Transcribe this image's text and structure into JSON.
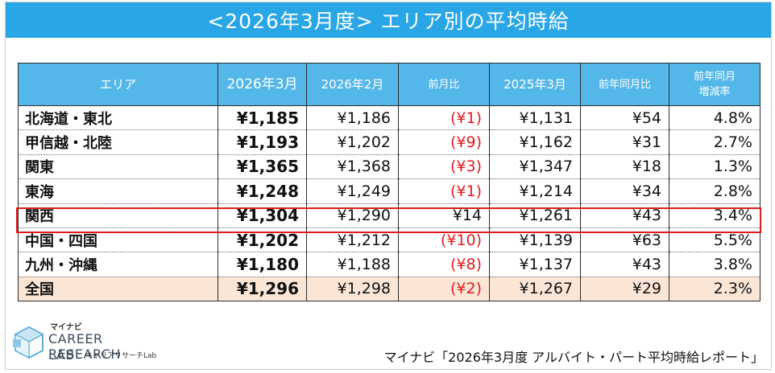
{
  "title": "<2026年3月度>  エリア別の平均時給",
  "table": {
    "headers": [
      "エリア",
      "2026年3月",
      "2026年2月",
      "前月比",
      "2025年3月",
      "前年同月比",
      "前年同月\n増減率"
    ],
    "rows": [
      {
        "region": "北海道・東北",
        "mar2026": "¥1,185",
        "feb2026": "¥1,186",
        "mom": "(¥1)",
        "mar2025": "¥1,131",
        "yoy": "¥54",
        "yoy_rate": "4.8%"
      },
      {
        "region": "甲信越・北陸",
        "mar2026": "¥1,193",
        "feb2026": "¥1,202",
        "mom": "(¥9)",
        "mar2025": "¥1,162",
        "yoy": "¥31",
        "yoy_rate": "2.7%"
      },
      {
        "region": "関東",
        "mar2026": "¥1,365",
        "feb2026": "¥1,368",
        "mom": "(¥3)",
        "mar2025": "¥1,347",
        "yoy": "¥18",
        "yoy_rate": "1.3%"
      },
      {
        "region": "東海",
        "mar2026": "¥1,248",
        "feb2026": "¥1,249",
        "mom": "(¥1)",
        "mar2025": "¥1,214",
        "yoy": "¥34",
        "yoy_rate": "2.8%"
      },
      {
        "region": "関西",
        "mar2026": "¥1,304",
        "feb2026": "¥1,290",
        "mom": "¥14",
        "mar2025": "¥1,261",
        "yoy": "¥43",
        "yoy_rate": "3.4%"
      },
      {
        "region": "中国・四国",
        "mar2026": "¥1,202",
        "feb2026": "¥1,212",
        "mom": "(¥10)",
        "mar2025": "¥1,139",
        "yoy": "¥63",
        "yoy_rate": "5.5%"
      },
      {
        "region": "九州・沖縄",
        "mar2026": "¥1,180",
        "feb2026": "¥1,188",
        "mom": "(¥8)",
        "mar2025": "¥1,137",
        "yoy": "¥43",
        "yoy_rate": "3.8%"
      },
      {
        "region": "全国",
        "mar2026": "¥1,296",
        "feb2026": "¥1,298",
        "mom": "(¥2)",
        "mar2025": "¥1,267",
        "yoy": "¥29",
        "yoy_rate": "2.3%"
      }
    ]
  },
  "logo": {
    "brand_small": "マイナビ",
    "line1": "CAREER RESEARCH",
    "line2": "LAB",
    "sub": "キャリアリサーチLab"
  },
  "source": "マイナビ「2026年3月度 アルバイト・パート平均時給レポート」",
  "colors": {
    "title_bg": "#29a6e6",
    "header_bg": "#54b7ea",
    "negative": "#e21c1c",
    "total_row_bg": "#fbe6d6",
    "highlight_border": "#e11b1b"
  }
}
